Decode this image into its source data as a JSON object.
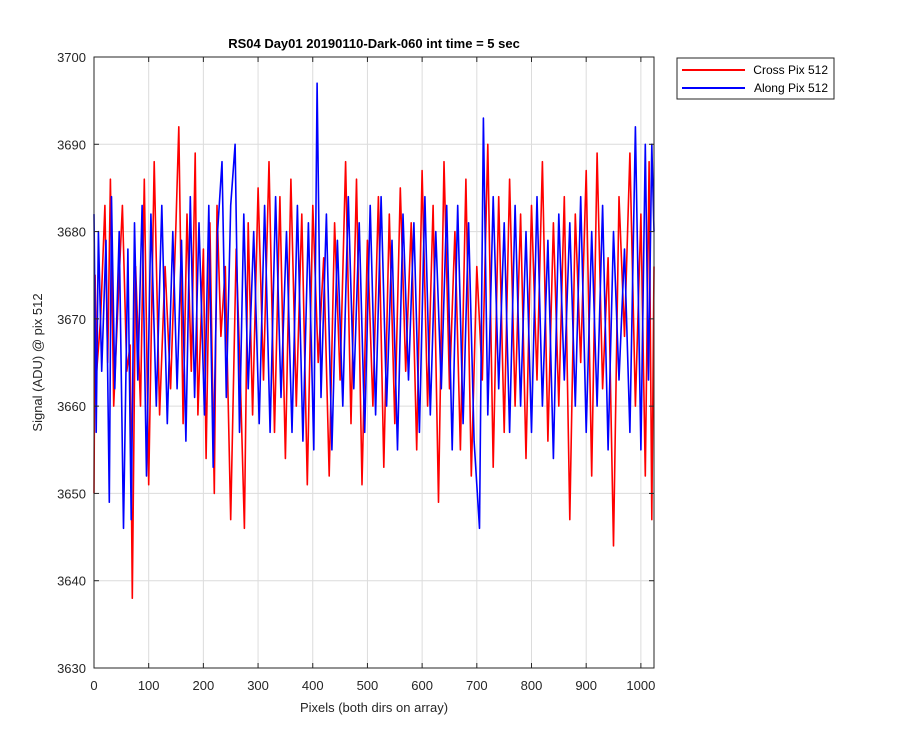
{
  "chart_data": {
    "type": "line",
    "title": "RS04 Day01 20190110-Dark-060 int time = 5 sec",
    "xlabel": "Pixels (both dirs on array)",
    "ylabel": "Signal (ADU) @ pix 512",
    "xlim": [
      0,
      1024
    ],
    "ylim": [
      3630,
      3700
    ],
    "xticks": [
      0,
      100,
      200,
      300,
      400,
      500,
      600,
      700,
      800,
      900,
      1000
    ],
    "yticks": [
      3630,
      3640,
      3650,
      3660,
      3670,
      3680,
      3690,
      3700
    ],
    "grid": true,
    "legend_position": "outside-top-right",
    "series": [
      {
        "name": "Cross Pix 512",
        "color": "#ff0000",
        "x": [
          0,
          2,
          5,
          12,
          20,
          25,
          30,
          36,
          44,
          52,
          60,
          66,
          70,
          76,
          85,
          92,
          100,
          110,
          120,
          130,
          140,
          150,
          155,
          163,
          170,
          178,
          185,
          190,
          200,
          205,
          212,
          220,
          225,
          232,
          240,
          250,
          260,
          268,
          275,
          282,
          290,
          300,
          310,
          320,
          330,
          340,
          350,
          360,
          370,
          380,
          390,
          400,
          410,
          420,
          430,
          440,
          450,
          460,
          470,
          480,
          490,
          500,
          510,
          520,
          530,
          540,
          550,
          560,
          570,
          580,
          590,
          600,
          610,
          620,
          630,
          640,
          650,
          660,
          670,
          680,
          690,
          700,
          710,
          720,
          730,
          740,
          750,
          760,
          770,
          780,
          790,
          800,
          810,
          820,
          830,
          840,
          850,
          860,
          870,
          880,
          890,
          900,
          910,
          920,
          930,
          940,
          950,
          960,
          970,
          980,
          990,
          1000,
          1008,
          1015,
          1020,
          1024
        ],
        "values": [
          3650,
          3675,
          3664,
          3670,
          3683,
          3665,
          3686,
          3660,
          3672,
          3683,
          3664,
          3667,
          3638,
          3676,
          3660,
          3686,
          3651,
          3688,
          3659,
          3676,
          3662,
          3681,
          3692,
          3658,
          3682,
          3664,
          3689,
          3659,
          3678,
          3654,
          3681,
          3650,
          3683,
          3668,
          3676,
          3647,
          3678,
          3662,
          3646,
          3681,
          3659,
          3685,
          3663,
          3688,
          3657,
          3684,
          3654,
          3686,
          3660,
          3682,
          3651,
          3683,
          3665,
          3677,
          3652,
          3681,
          3663,
          3688,
          3658,
          3686,
          3651,
          3679,
          3660,
          3684,
          3653,
          3682,
          3658,
          3685,
          3664,
          3681,
          3655,
          3687,
          3660,
          3683,
          3649,
          3688,
          3662,
          3680,
          3655,
          3686,
          3652,
          3676,
          3663,
          3690,
          3653,
          3684,
          3657,
          3686,
          3660,
          3682,
          3654,
          3683,
          3663,
          3688,
          3656,
          3681,
          3660,
          3684,
          3647,
          3682,
          3665,
          3687,
          3652,
          3689,
          3662,
          3677,
          3644,
          3684,
          3668,
          3689,
          3660,
          3682,
          3652,
          3688,
          3647,
          3676
        ]
      },
      {
        "name": "Along Pix 512",
        "color": "#0000ff",
        "x": [
          0,
          4,
          8,
          14,
          22,
          28,
          32,
          38,
          46,
          54,
          62,
          68,
          74,
          80,
          88,
          96,
          104,
          114,
          124,
          134,
          144,
          152,
          160,
          168,
          176,
          184,
          192,
          202,
          210,
          218,
          226,
          234,
          242,
          250,
          258,
          266,
          274,
          282,
          292,
          302,
          312,
          322,
          332,
          342,
          352,
          362,
          372,
          382,
          392,
          402,
          408,
          415,
          425,
          435,
          445,
          455,
          465,
          475,
          485,
          495,
          505,
          515,
          525,
          535,
          545,
          555,
          565,
          575,
          585,
          595,
          605,
          615,
          625,
          635,
          645,
          655,
          665,
          675,
          685,
          695,
          705,
          712,
          720,
          730,
          740,
          750,
          760,
          770,
          780,
          790,
          800,
          810,
          820,
          830,
          840,
          850,
          860,
          870,
          880,
          890,
          900,
          910,
          920,
          930,
          940,
          950,
          960,
          970,
          980,
          990,
          1000,
          1008,
          1014,
          1020,
          1024
        ],
        "values": [
          3682,
          3657,
          3680,
          3664,
          3679,
          3649,
          3684,
          3662,
          3680,
          3646,
          3678,
          3647,
          3681,
          3663,
          3683,
          3652,
          3682,
          3660,
          3683,
          3658,
          3680,
          3662,
          3679,
          3656,
          3684,
          3661,
          3681,
          3659,
          3683,
          3653,
          3680,
          3688,
          3661,
          3683,
          3690,
          3657,
          3682,
          3662,
          3680,
          3658,
          3683,
          3657,
          3684,
          3661,
          3680,
          3657,
          3683,
          3656,
          3681,
          3655,
          3697,
          3661,
          3682,
          3655,
          3679,
          3660,
          3684,
          3662,
          3681,
          3657,
          3683,
          3659,
          3684,
          3660,
          3679,
          3655,
          3682,
          3663,
          3681,
          3657,
          3684,
          3659,
          3680,
          3662,
          3683,
          3655,
          3683,
          3658,
          3681,
          3656,
          3646,
          3693,
          3659,
          3684,
          3662,
          3681,
          3657,
          3683,
          3660,
          3680,
          3657,
          3684,
          3660,
          3679,
          3654,
          3682,
          3663,
          3681,
          3660,
          3684,
          3657,
          3680,
          3660,
          3683,
          3655,
          3680,
          3663,
          3678,
          3657,
          3692,
          3655,
          3690,
          3663,
          3690,
          3680
        ]
      }
    ]
  }
}
